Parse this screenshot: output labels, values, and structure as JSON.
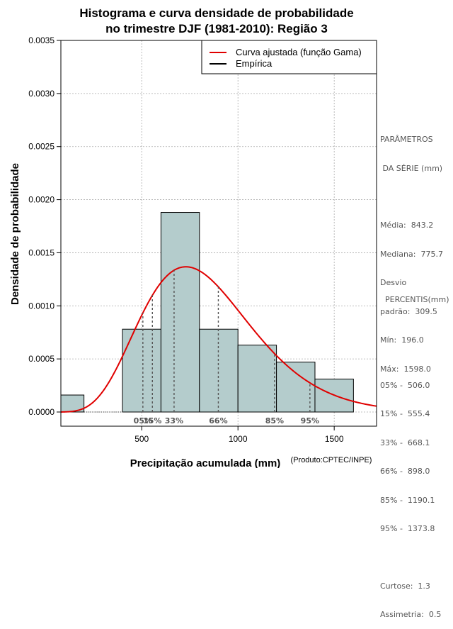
{
  "chart_data": {
    "type": "bar",
    "title_lines": [
      "Histograma e curva densidade de probabilidade",
      "no trimestre DJF (1981-2010): Região 3"
    ],
    "xlabel": "Precipitação acumulada (mm)",
    "ylabel": "Densidade de probabilidade",
    "credit": "(Produto:CPTEC/INPE)",
    "xlim": [
      80,
      1720
    ],
    "ylim": [
      0,
      0.0035
    ],
    "x_ticks": [
      500,
      1000,
      1500
    ],
    "x_tick_labels": [
      "500",
      "1000",
      "1500"
    ],
    "y_ticks": [
      0,
      0.0005,
      0.001,
      0.0015,
      0.002,
      0.0025,
      0.003,
      0.0035
    ],
    "y_tick_labels": [
      "0.0000",
      "0.0005",
      "0.0010",
      "0.0015",
      "0.0020",
      "0.0025",
      "0.0030",
      "0.0035"
    ],
    "grid": true,
    "bins": [
      {
        "start": 80,
        "end": 200,
        "density": 0.00016
      },
      {
        "start": 200,
        "end": 400,
        "density": 0
      },
      {
        "start": 400,
        "end": 600,
        "density": 0.00078
      },
      {
        "start": 600,
        "end": 800,
        "density": 0.00188
      },
      {
        "start": 800,
        "end": 1000,
        "density": 0.00078
      },
      {
        "start": 1000,
        "end": 1200,
        "density": 0.00063
      },
      {
        "start": 1200,
        "end": 1400,
        "density": 0.00047
      },
      {
        "start": 1400,
        "end": 1600,
        "density": 0.00031
      }
    ],
    "gamma_fit": {
      "mean": 843.2,
      "sd": 309.5
    },
    "legend": {
      "position": "top-right",
      "entries": [
        {
          "label": "Curva ajustada (função Gama)",
          "color": "#e00000"
        },
        {
          "label": "Empírica",
          "color": "#000000"
        }
      ]
    },
    "percentiles": [
      {
        "label": "05%",
        "value": 506.0
      },
      {
        "label": "15%",
        "value": 555.4
      },
      {
        "label": "33%",
        "value": 668.1
      },
      {
        "label": "66%",
        "value": 898.0
      },
      {
        "label": "85%",
        "value": 1190.1
      },
      {
        "label": "95%",
        "value": 1373.8
      }
    ]
  },
  "colors": {
    "bar_fill": "#b4cccc",
    "curve": "#e00000",
    "grid": "#aaaaaa",
    "percentile_line": "#555555"
  },
  "stats": {
    "heading_1": "PARÂMETROS",
    "heading_2": " DA SÉRIE (mm)",
    "media": "Média:  843.2",
    "mediana": "Mediana:  775.7",
    "desvio_1": "Desvio",
    "desvio_2": "padrão:  309.5",
    "min": "Mín:  196.0",
    "max": "Máx:  1598.0"
  },
  "percentis_panel": {
    "heading": "  PERCENTIS(mm)",
    "p05": "05% -  506.0",
    "p15": "15% -  555.4",
    "p33": "33% -  668.1",
    "p66": "66% -  898.0",
    "p85": "85% -  1190.1",
    "p95": "95% -  1373.8",
    "curtose": "Curtose:  1.3",
    "assimetria": "Assimetria:  0.5"
  }
}
